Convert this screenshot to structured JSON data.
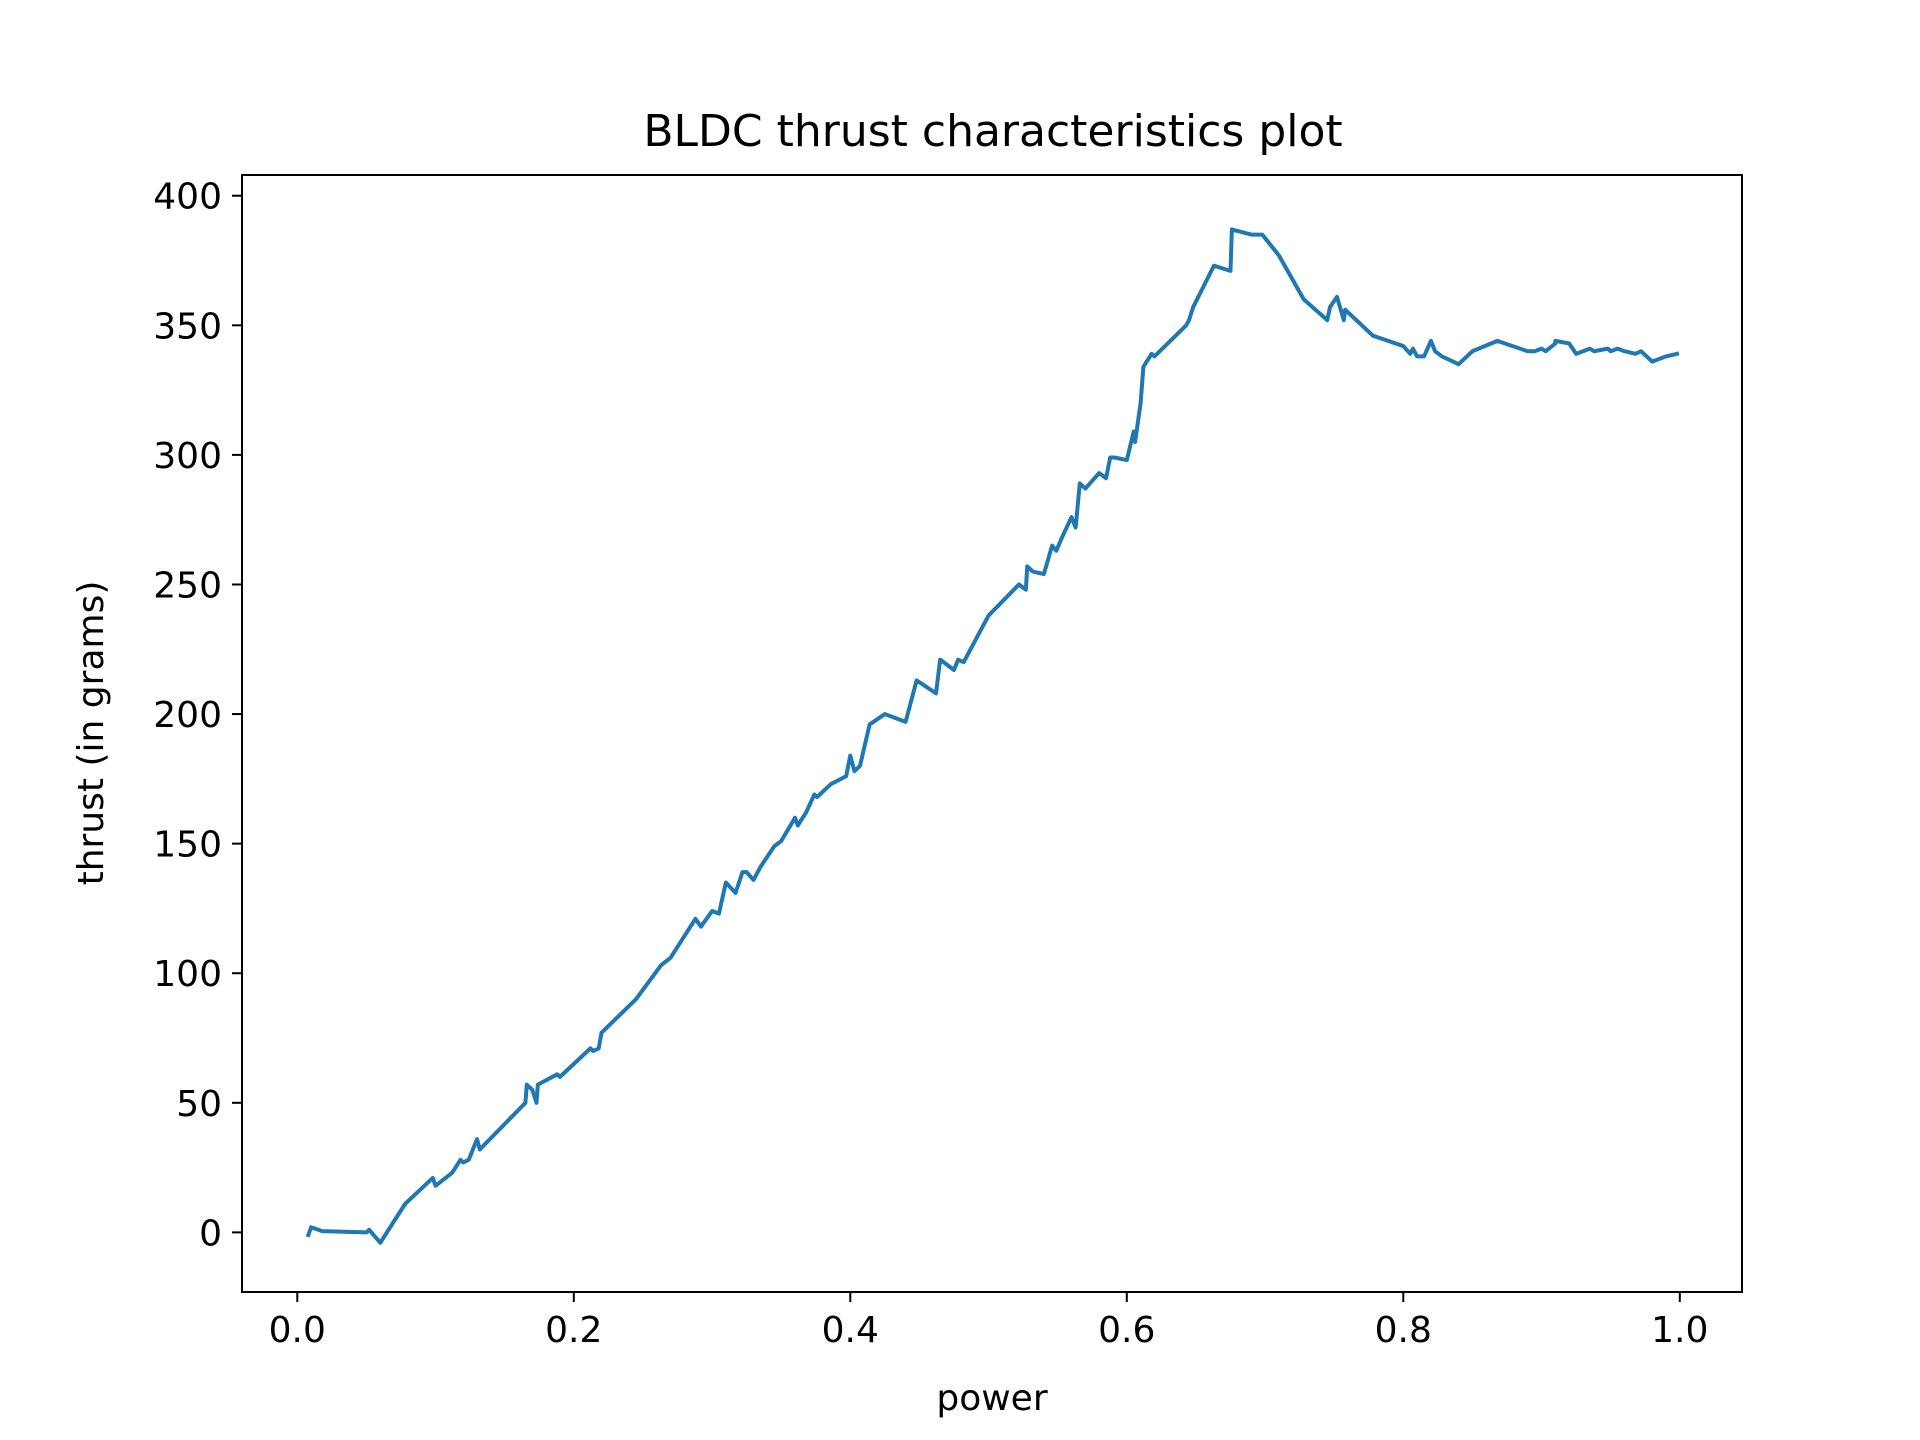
{
  "chart_data": {
    "type": "line",
    "title": "BLDC thrust characteristics plot",
    "xlabel": "power",
    "ylabel": "thrust (in grams)",
    "xlim": [
      -0.04,
      1.045
    ],
    "ylim": [
      -23,
      408
    ],
    "xticks": [
      0.0,
      0.2,
      0.4,
      0.6,
      0.8,
      1.0
    ],
    "xtick_labels": [
      "0.0",
      "0.2",
      "0.4",
      "0.6",
      "0.8",
      "1.0"
    ],
    "yticks": [
      0,
      50,
      100,
      150,
      200,
      250,
      300,
      350,
      400
    ],
    "ytick_labels": [
      "0",
      "50",
      "100",
      "150",
      "200",
      "250",
      "300",
      "350",
      "400"
    ],
    "grid": false,
    "series": [
      {
        "color": "#1f77b4",
        "x": [
          0.008,
          0.01,
          0.018,
          0.05,
          0.052,
          0.06,
          0.078,
          0.082,
          0.098,
          0.1,
          0.112,
          0.118,
          0.12,
          0.124,
          0.13,
          0.132,
          0.165,
          0.166,
          0.17,
          0.173,
          0.174,
          0.188,
          0.19,
          0.212,
          0.214,
          0.218,
          0.22,
          0.245,
          0.263,
          0.27,
          0.288,
          0.292,
          0.3,
          0.305,
          0.31,
          0.317,
          0.322,
          0.325,
          0.33,
          0.335,
          0.345,
          0.35,
          0.36,
          0.362,
          0.368,
          0.374,
          0.376,
          0.386,
          0.397,
          0.4,
          0.403,
          0.407,
          0.414,
          0.425,
          0.44,
          0.448,
          0.462,
          0.465,
          0.475,
          0.478,
          0.482,
          0.5,
          0.522,
          0.527,
          0.528,
          0.532,
          0.54,
          0.546,
          0.549,
          0.553,
          0.56,
          0.563,
          0.566,
          0.57,
          0.58,
          0.585,
          0.588,
          0.591,
          0.6,
          0.605,
          0.606,
          0.61,
          0.612,
          0.618,
          0.62,
          0.643,
          0.645,
          0.648,
          0.663,
          0.675,
          0.676,
          0.69,
          0.698,
          0.71,
          0.728,
          0.745,
          0.747,
          0.752,
          0.757,
          0.758,
          0.76,
          0.76,
          0.776,
          0.778,
          0.8,
          0.805,
          0.807,
          0.81,
          0.815,
          0.82,
          0.823,
          0.828,
          0.84,
          0.848,
          0.85,
          0.868,
          0.89,
          0.895,
          0.9,
          0.903,
          0.91,
          0.91,
          0.92,
          0.925,
          0.935,
          0.938,
          0.948,
          0.95,
          0.955,
          0.96,
          0.968,
          0.972,
          0.98,
          0.99,
          0.998
        ],
        "y": [
          -1,
          2,
          0.5,
          0,
          1,
          -4,
          11,
          13,
          21,
          18,
          23,
          28,
          27,
          28,
          36,
          32,
          50,
          57,
          55,
          50,
          57,
          61,
          60,
          71,
          70,
          71,
          77,
          90,
          103,
          106,
          121,
          118,
          124,
          123,
          135,
          131,
          139,
          139,
          136,
          141,
          149,
          151,
          160,
          157,
          162,
          169,
          168,
          173,
          176,
          184,
          178,
          180,
          196,
          200,
          197,
          213,
          208,
          221,
          217,
          221,
          220,
          238,
          250,
          248,
          257,
          255,
          254,
          265,
          263,
          268,
          276,
          272,
          289,
          287,
          293,
          291,
          299,
          299,
          298,
          309,
          305,
          320,
          334,
          339,
          338,
          350,
          352,
          357,
          373,
          371,
          387,
          385,
          385,
          377,
          360,
          352,
          357,
          361,
          352,
          356,
          355,
          355,
          347,
          346,
          342,
          339,
          341,
          338,
          338,
          344,
          340,
          338,
          335,
          339,
          340,
          344,
          340,
          340,
          341,
          340,
          343,
          344,
          343,
          339,
          341,
          340,
          341,
          340,
          341,
          340,
          339,
          340,
          336,
          338,
          339
        ]
      }
    ]
  }
}
